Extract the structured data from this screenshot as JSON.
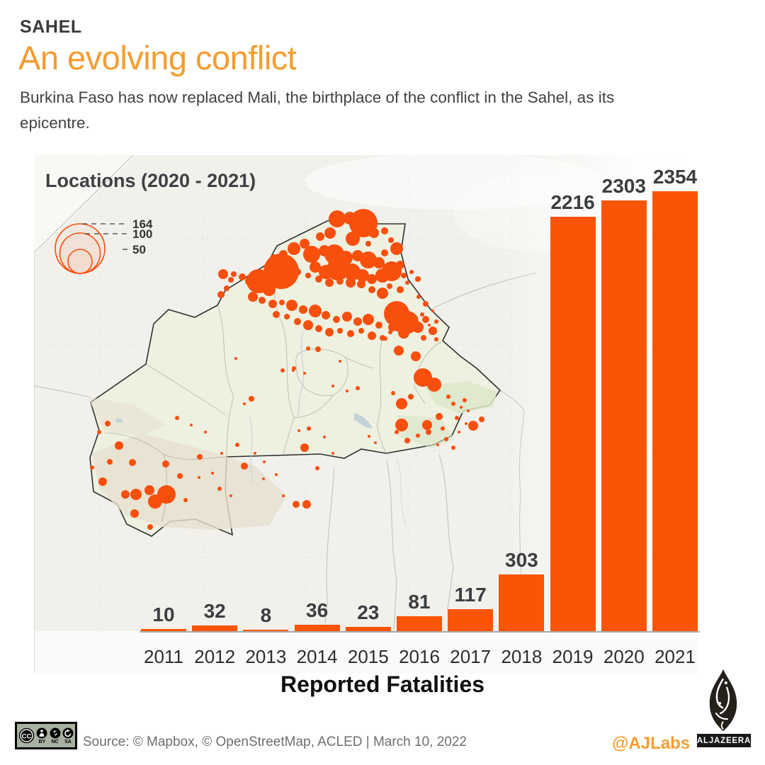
{
  "header": {
    "kicker": "SAHEL",
    "title": "An evolving conflict",
    "description": "Burkina Faso has now replaced Mali, the birthplace of the conflict in the Sahel, as its epicentre.",
    "accent_color": "#F69C2F"
  },
  "map": {
    "legend_title": "Locations (2020 - 2021)",
    "size_legend": {
      "values": [
        164,
        100,
        50
      ],
      "radii": [
        35,
        28.5,
        17
      ]
    },
    "colors": {
      "dot": "#F84F0C",
      "country_fill": "#EEF0E0",
      "country_border": "#2F3330",
      "panel_bg": "#F1F0EB"
    },
    "dots": [
      [
        513,
        315,
        20
      ],
      [
        494,
        308,
        9
      ],
      [
        476,
        309,
        12
      ],
      [
        528,
        329,
        7
      ],
      [
        543,
        326,
        5
      ],
      [
        466,
        329,
        8
      ],
      [
        452,
        334,
        6
      ],
      [
        498,
        337,
        10
      ],
      [
        520,
        344,
        4
      ],
      [
        552,
        339,
        4
      ],
      [
        560,
        351,
        9
      ],
      [
        543,
        357,
        5
      ],
      [
        430,
        344,
        7
      ],
      [
        415,
        351,
        9
      ],
      [
        400,
        359,
        6
      ],
      [
        388,
        367,
        8
      ],
      [
        440,
        359,
        12
      ],
      [
        458,
        354,
        8
      ],
      [
        472,
        359,
        14
      ],
      [
        488,
        364,
        10
      ],
      [
        505,
        361,
        8
      ],
      [
        520,
        367,
        12
      ],
      [
        535,
        371,
        8
      ],
      [
        477,
        380,
        16
      ],
      [
        460,
        384,
        10
      ],
      [
        445,
        377,
        8
      ],
      [
        497,
        384,
        12
      ],
      [
        512,
        389,
        9
      ],
      [
        553,
        383,
        14
      ],
      [
        565,
        374,
        6
      ],
      [
        540,
        389,
        10
      ],
      [
        525,
        394,
        7
      ],
      [
        570,
        389,
        4
      ],
      [
        581,
        384,
        3
      ],
      [
        575,
        399,
        3
      ],
      [
        590,
        394,
        4
      ],
      [
        565,
        409,
        5
      ],
      [
        550,
        404,
        4
      ],
      [
        540,
        414,
        8
      ],
      [
        525,
        409,
        5
      ],
      [
        510,
        401,
        6
      ],
      [
        495,
        399,
        7
      ],
      [
        480,
        397,
        5
      ],
      [
        465,
        399,
        6
      ],
      [
        450,
        394,
        5
      ],
      [
        435,
        389,
        4
      ],
      [
        420,
        384,
        5
      ],
      [
        410,
        374,
        7
      ],
      [
        397,
        383,
        25
      ],
      [
        365,
        397,
        17
      ],
      [
        380,
        409,
        9
      ],
      [
        352,
        397,
        6
      ],
      [
        342,
        391,
        5
      ],
      [
        330,
        387,
        4
      ],
      [
        315,
        387,
        7
      ],
      [
        326,
        395,
        4
      ],
      [
        312,
        416,
        5
      ],
      [
        320,
        407,
        4
      ],
      [
        357,
        419,
        7
      ],
      [
        370,
        424,
        5
      ],
      [
        385,
        429,
        6
      ],
      [
        398,
        427,
        4
      ],
      [
        412,
        431,
        8
      ],
      [
        428,
        437,
        6
      ],
      [
        445,
        439,
        9
      ],
      [
        460,
        445,
        6
      ],
      [
        475,
        451,
        5
      ],
      [
        490,
        447,
        7
      ],
      [
        505,
        454,
        6
      ],
      [
        520,
        451,
        8
      ],
      [
        535,
        459,
        5
      ],
      [
        420,
        454,
        5
      ],
      [
        435,
        459,
        7
      ],
      [
        450,
        464,
        5
      ],
      [
        405,
        447,
        4
      ],
      [
        390,
        444,
        5
      ],
      [
        465,
        469,
        6
      ],
      [
        480,
        467,
        4
      ],
      [
        495,
        471,
        5
      ],
      [
        510,
        467,
        4
      ],
      [
        525,
        474,
        6
      ],
      [
        540,
        477,
        4
      ],
      [
        551,
        469,
        3
      ],
      [
        561,
        464,
        4
      ],
      [
        576,
        459,
        3
      ],
      [
        586,
        449,
        4
      ],
      [
        596,
        444,
        3
      ],
      [
        601,
        429,
        4
      ],
      [
        591,
        419,
        3
      ],
      [
        611,
        439,
        2
      ],
      [
        616,
        454,
        3
      ],
      [
        606,
        459,
        2
      ],
      [
        560,
        443,
        18
      ],
      [
        575,
        455,
        16
      ],
      [
        590,
        462,
        8
      ],
      [
        601,
        451,
        5
      ],
      [
        611,
        467,
        6
      ],
      [
        598,
        477,
        4
      ],
      [
        616,
        479,
        3
      ],
      [
        570,
        470,
        8
      ],
      [
        554,
        462,
        6
      ],
      [
        587,
        503,
        7
      ],
      [
        563,
        495,
        7
      ],
      [
        597,
        533,
        13
      ],
      [
        613,
        543,
        10
      ],
      [
        567,
        570,
        8
      ],
      [
        580,
        560,
        4
      ],
      [
        555,
        555,
        3
      ],
      [
        567,
        600,
        9
      ],
      [
        603,
        600,
        7
      ],
      [
        620,
        588,
        5
      ],
      [
        640,
        570,
        3
      ],
      [
        651,
        575,
        2
      ],
      [
        656,
        565,
        3
      ],
      [
        661,
        580,
        2
      ],
      [
        633,
        560,
        3
      ],
      [
        645,
        590,
        3
      ],
      [
        658,
        598,
        2
      ],
      [
        630,
        620,
        3
      ],
      [
        618,
        628,
        2
      ],
      [
        640,
        632,
        3
      ],
      [
        668,
        601,
        7
      ],
      [
        680,
        592,
        4
      ],
      [
        605,
        610,
        4
      ],
      [
        590,
        615,
        3
      ],
      [
        575,
        622,
        4
      ],
      [
        560,
        610,
        3
      ],
      [
        625,
        605,
        3
      ],
      [
        648,
        610,
        2
      ],
      [
        449,
        493,
        4
      ],
      [
        435,
        492,
        3
      ],
      [
        544,
        478,
        3
      ],
      [
        480,
        510,
        2
      ],
      [
        436,
        605,
        3
      ],
      [
        422,
        608,
        2
      ],
      [
        430,
        632,
        6
      ],
      [
        448,
        661,
        3
      ],
      [
        373,
        652,
        2
      ],
      [
        355,
        563,
        4
      ],
      [
        345,
        570,
        2
      ],
      [
        470,
        545,
        2
      ],
      [
        490,
        552,
        2
      ],
      [
        505,
        548,
        3
      ],
      [
        430,
        527,
        2
      ],
      [
        415,
        520,
        3
      ],
      [
        333,
        506,
        2
      ],
      [
        399,
        523,
        3
      ],
      [
        414,
        523,
        2
      ],
      [
        521,
        616,
        2
      ],
      [
        530,
        625,
        2
      ],
      [
        470,
        640,
        2
      ],
      [
        458,
        617,
        2
      ],
      [
        168,
        629,
        6
      ],
      [
        155,
        652,
        4
      ],
      [
        187,
        653,
        5
      ],
      [
        234,
        655,
        5
      ],
      [
        254,
        672,
        4
      ],
      [
        282,
        645,
        4
      ],
      [
        313,
        640,
        2
      ],
      [
        345,
        658,
        5
      ],
      [
        335,
        628,
        3
      ],
      [
        360,
        640,
        2
      ],
      [
        177,
        698,
        6
      ],
      [
        192,
        698,
        8
      ],
      [
        211,
        692,
        7
      ],
      [
        235,
        698,
        13
      ],
      [
        219,
        708,
        10
      ],
      [
        190,
        725,
        6
      ],
      [
        212,
        744,
        4
      ],
      [
        262,
        706,
        3
      ],
      [
        281,
        674,
        2
      ],
      [
        300,
        668,
        2
      ],
      [
        145,
        680,
        6
      ],
      [
        130,
        660,
        3
      ],
      [
        372,
        676,
        2
      ],
      [
        390,
        670,
        2
      ],
      [
        418,
        712,
        5
      ],
      [
        433,
        712,
        6
      ],
      [
        400,
        700,
        2
      ],
      [
        310,
        690,
        3
      ],
      [
        326,
        700,
        2
      ],
      [
        152,
        598,
        4
      ],
      [
        140,
        610,
        3
      ],
      [
        250,
        590,
        3
      ],
      [
        270,
        600,
        2
      ],
      [
        290,
        610,
        2
      ]
    ]
  },
  "chart_data": {
    "type": "bar",
    "title": "Reported Fatalities",
    "categories": [
      "2011",
      "2012",
      "2013",
      "2014",
      "2015",
      "2016",
      "2017",
      "2018",
      "2019",
      "2020",
      "2021"
    ],
    "values": [
      10,
      32,
      8,
      36,
      23,
      81,
      117,
      303,
      2216,
      2303,
      2354
    ],
    "bar_color": "#FB5404",
    "label_color": "#3B3E41",
    "ylim": [
      0,
      2354
    ],
    "value_labels_shown": true,
    "grid": false,
    "legend": "none"
  },
  "footer": {
    "license": {
      "label": "CC",
      "terms": [
        "BY",
        "NC",
        "SA"
      ]
    },
    "source": "Source: © Mapbox, © OpenStreetMap, ACLED | March 10, 2022",
    "credit": "@AJLabs",
    "brand": "ALJAZEERA"
  }
}
